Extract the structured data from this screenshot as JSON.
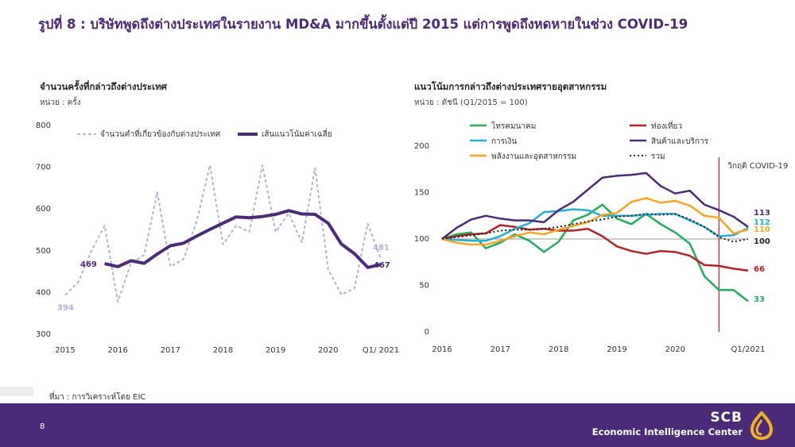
{
  "slide": {
    "title": "รูปที่ 8 : บริษัทพูดถึงต่างประเทศในรายงาน MD&A มากขึ้นตั้งแต่ปี 2015 แต่การพูดถึงหดหายในช่วง COVID-19",
    "source": "ที่มา : การวิเคราะห์โดย EIC",
    "page_number": "8"
  },
  "brand": {
    "name": "SCB",
    "subtitle": "Economic Intelligence Center",
    "accent": "#f0b323",
    "footer_color": "#4b2a78"
  },
  "left": {
    "title": "จำนวนครั้งที่กล่าวถึงต่างประเทศ",
    "unit": "หน่วย : ครั้ง",
    "legend": {
      "raw": "จำนวนคำที่เกี่ยวข้องกับต่างประเทศ",
      "avg": "เส้นแนวโน้มค่าเฉลี่ย"
    },
    "labels": {
      "raw_first": "394",
      "raw_last": "481",
      "avg_first": "469",
      "avg_last": "467"
    }
  },
  "right": {
    "title": "แนวโน้มการกล่าวถึงต่างประเทศรายอุตสาหกรรม",
    "unit": "หน่วย : ดัชนี (Q1/2015 = 100)",
    "covid_label": "วิกฤติ COVID-19"
  },
  "chart_data": [
    {
      "type": "line",
      "title": "จำนวนครั้งที่กล่าวถึงต่างประเทศ",
      "ylim": [
        300,
        800
      ],
      "yticks": [
        "300",
        "400",
        "500",
        "600",
        "700",
        "800"
      ],
      "xtick_labels": [
        "2015",
        "2016",
        "2017",
        "2018",
        "2019",
        "2020",
        "Q1/ 2021"
      ],
      "x_quarters": 25,
      "series": [
        {
          "name": "จำนวนคำที่เกี่ยวข้องกับต่างประเทศ",
          "color": "#b7afd8",
          "dashed": true,
          "values": [
            394,
            425,
            500,
            560,
            378,
            470,
            490,
            640,
            462,
            480,
            570,
            705,
            515,
            560,
            545,
            705,
            545,
            590,
            520,
            698,
            455,
            395,
            410,
            565,
            481
          ]
        },
        {
          "name": "เส้นแนวโน้มค่าเฉลี่ย",
          "color": "#4b2a78",
          "dashed": false,
          "start_index": 3,
          "values": [
            469,
            462,
            476,
            470,
            492,
            512,
            518,
            535,
            551,
            566,
            581,
            579,
            582,
            587,
            596,
            588,
            587,
            566,
            516,
            493,
            460,
            467
          ]
        }
      ]
    },
    {
      "type": "line",
      "title": "แนวโน้มการกล่าวถึงต่างประเทศรายอุตสาหกรรม",
      "ylim": [
        0,
        200
      ],
      "yticks": [
        "0",
        "50",
        "100",
        "150",
        "200"
      ],
      "xtick_labels": [
        "2016",
        "2017",
        "2018",
        "2019",
        "2020",
        "Q1/2021"
      ],
      "x_quarters": 22,
      "reference_line": 100,
      "covid_index": 19,
      "series": [
        {
          "name": "โทรคมนาคม",
          "color": "#22ad5c",
          "label": "33",
          "values": [
            100,
            105,
            107,
            90,
            96,
            105,
            98,
            86,
            97,
            120,
            126,
            137,
            122,
            116,
            127,
            116,
            107,
            95,
            60,
            45,
            45,
            33
          ]
        },
        {
          "name": "ท่องเที่ยว",
          "color": "#b42127",
          "label": "66",
          "values": [
            100,
            103,
            105,
            106,
            115,
            113,
            110,
            111,
            109,
            109,
            111,
            103,
            92,
            87,
            84,
            87,
            86,
            82,
            72,
            71,
            68,
            66
          ]
        },
        {
          "name": "การเงิน",
          "color": "#22b0d6",
          "label": "112",
          "values": [
            100,
            99,
            98,
            98,
            103,
            111,
            117,
            129,
            130,
            132,
            131,
            125,
            125,
            125,
            126,
            127,
            127,
            120,
            113,
            103,
            104,
            112
          ]
        },
        {
          "name": "สินค้าและบริการ",
          "color": "#4b2a78",
          "label": "113",
          "values": [
            100,
            112,
            121,
            125,
            122,
            120,
            120,
            118,
            131,
            140,
            153,
            166,
            168,
            169,
            171,
            157,
            149,
            152,
            137,
            131,
            124,
            113
          ]
        },
        {
          "name": "พลังงานและอุตสาหกรรม",
          "color": "#f5a623",
          "label": "110",
          "values": [
            100,
            96,
            94,
            94,
            98,
            103,
            107,
            105,
            110,
            114,
            118,
            126,
            128,
            140,
            144,
            139,
            141,
            136,
            125,
            123,
            106,
            110
          ]
        },
        {
          "name": "รวม",
          "color": "#222222",
          "dotted": true,
          "label": "100",
          "values": [
            100,
            102,
            104,
            106,
            109,
            110,
            110,
            111,
            113,
            116,
            119,
            121,
            124,
            125,
            127,
            126,
            127,
            121,
            113,
            102,
            97,
            100
          ]
        }
      ]
    }
  ]
}
